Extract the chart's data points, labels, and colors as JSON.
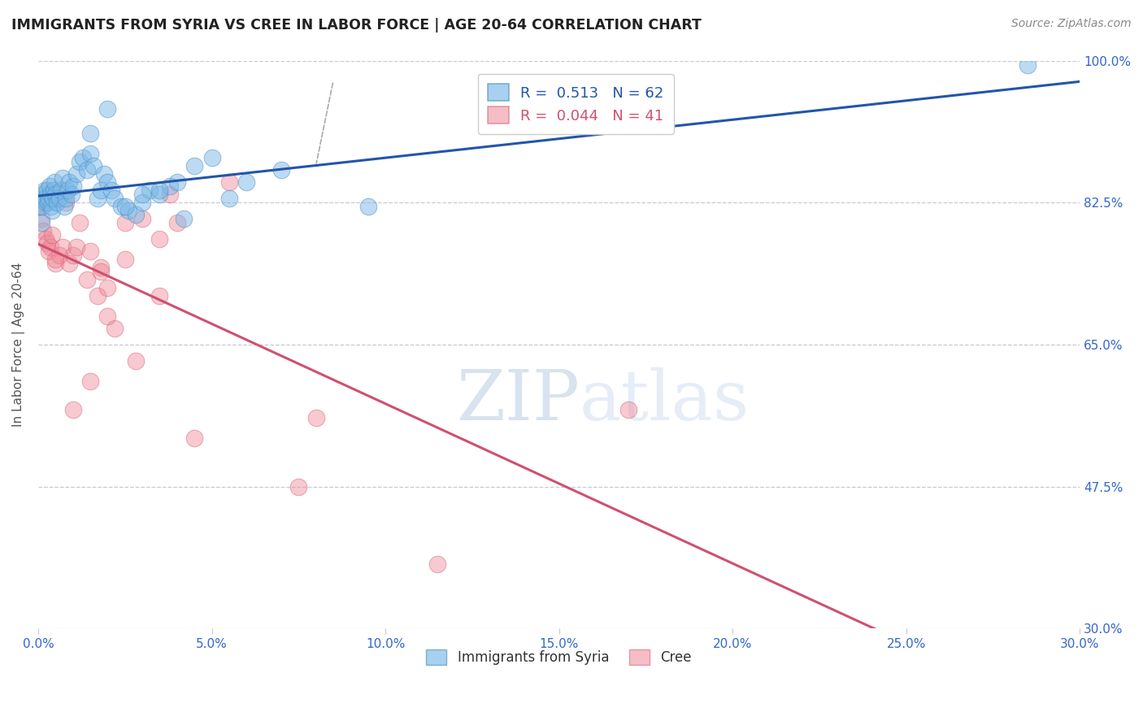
{
  "title": "IMMIGRANTS FROM SYRIA VS CREE IN LABOR FORCE | AGE 20-64 CORRELATION CHART",
  "source": "Source: ZipAtlas.com",
  "ylabel": "In Labor Force | Age 20-64",
  "xlim": [
    0.0,
    30.0
  ],
  "ylim": [
    30.0,
    100.0
  ],
  "xticklabels": [
    "0.0%",
    "5.0%",
    "10.0%",
    "15.0%",
    "20.0%",
    "25.0%",
    "30.0%"
  ],
  "xticks": [
    0.0,
    5.0,
    10.0,
    15.0,
    20.0,
    25.0,
    30.0
  ],
  "yticklabels": [
    "30.0%",
    "47.5%",
    "65.0%",
    "82.5%",
    "100.0%"
  ],
  "yticks": [
    30.0,
    47.5,
    65.0,
    82.5,
    100.0
  ],
  "legend_r1": "0.513",
  "legend_n1": "62",
  "legend_r2": "0.044",
  "legend_n2": "41",
  "blue_color": "#7ab8e8",
  "pink_color": "#f08898",
  "blue_edge_color": "#5090c0",
  "pink_edge_color": "#d06070",
  "blue_line_color": "#2255aa",
  "pink_line_color": "#d05070",
  "watermark_zip": "#b0c8e8",
  "watermark_atlas": "#c0d8f0",
  "background_color": "#ffffff",
  "grid_color": "#c8c8d8",
  "axis_color": "#3366cc",
  "title_color": "#222222",
  "source_color": "#888888",
  "blue_scatter_x": [
    0.05,
    0.08,
    0.1,
    0.12,
    0.15,
    0.18,
    0.2,
    0.22,
    0.25,
    0.28,
    0.3,
    0.32,
    0.35,
    0.38,
    0.4,
    0.42,
    0.45,
    0.48,
    0.5,
    0.55,
    0.6,
    0.65,
    0.7,
    0.75,
    0.8,
    0.85,
    0.9,
    0.95,
    1.0,
    1.1,
    1.2,
    1.3,
    1.4,
    1.5,
    1.6,
    1.7,
    1.8,
    1.9,
    2.0,
    2.1,
    2.2,
    2.4,
    2.6,
    2.8,
    3.0,
    3.2,
    3.5,
    3.8,
    4.0,
    4.5,
    5.0,
    5.5,
    6.0,
    7.0,
    1.5,
    2.0,
    2.5,
    3.0,
    3.5,
    9.5,
    4.2,
    28.5
  ],
  "blue_scatter_y": [
    82.0,
    83.0,
    80.0,
    82.0,
    83.5,
    84.0,
    82.5,
    83.0,
    84.0,
    82.5,
    83.0,
    84.5,
    83.5,
    82.0,
    81.5,
    83.0,
    84.0,
    85.0,
    83.5,
    82.5,
    83.0,
    84.0,
    85.5,
    82.0,
    83.0,
    84.0,
    85.0,
    83.5,
    84.5,
    86.0,
    87.5,
    88.0,
    86.5,
    88.5,
    87.0,
    83.0,
    84.0,
    86.0,
    85.0,
    84.0,
    83.0,
    82.0,
    81.5,
    81.0,
    82.5,
    84.0,
    83.5,
    84.5,
    85.0,
    87.0,
    88.0,
    83.0,
    85.0,
    86.5,
    91.0,
    94.0,
    82.0,
    83.5,
    84.0,
    82.0,
    80.5,
    99.5
  ],
  "pink_scatter_x": [
    0.05,
    0.1,
    0.15,
    0.2,
    0.25,
    0.3,
    0.35,
    0.4,
    0.5,
    0.6,
    0.7,
    0.8,
    0.9,
    1.0,
    1.1,
    1.2,
    1.4,
    1.5,
    1.7,
    1.8,
    2.0,
    2.2,
    2.5,
    2.8,
    3.0,
    3.5,
    4.0,
    1.0,
    1.5,
    2.0,
    0.5,
    1.8,
    2.5,
    3.5,
    5.5,
    8.0,
    17.0,
    4.5,
    7.5,
    11.5,
    3.8
  ],
  "pink_scatter_y": [
    82.0,
    80.5,
    79.0,
    78.0,
    77.5,
    76.5,
    77.0,
    78.5,
    75.0,
    76.0,
    77.0,
    82.5,
    75.0,
    76.0,
    77.0,
    80.0,
    73.0,
    76.5,
    71.0,
    74.5,
    72.0,
    67.0,
    80.0,
    63.0,
    80.5,
    78.0,
    80.0,
    57.0,
    60.5,
    68.5,
    75.5,
    74.0,
    75.5,
    71.0,
    85.0,
    56.0,
    57.0,
    53.5,
    47.5,
    38.0,
    83.5
  ]
}
